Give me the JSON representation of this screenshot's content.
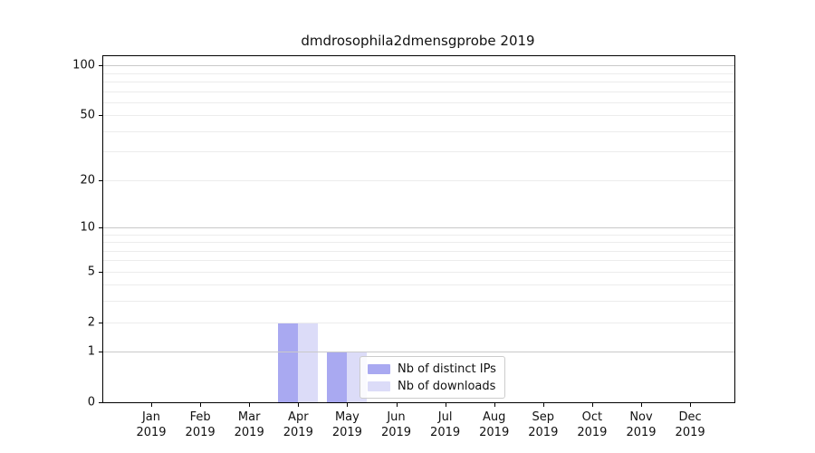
{
  "title": "dmdrosophila2dmensgprobe 2019",
  "colors": {
    "distinct_ips": "#a9a9f1",
    "downloads": "#dcdcf8",
    "grid_major": "#c9c9c9",
    "grid_minor": "#ececec",
    "axis": "#000000",
    "legend_border": "#cccccc",
    "background": "#ffffff"
  },
  "legend": {
    "position": "lower-center-inside",
    "items": [
      {
        "label": "Nb of distinct IPs",
        "color": "#a9a9f1"
      },
      {
        "label": "Nb of downloads",
        "color": "#dcdcf8"
      }
    ]
  },
  "chart_data": {
    "type": "bar",
    "title": "dmdrosophila2dmensgprobe 2019",
    "categories": [
      "Jan",
      "Feb",
      "Mar",
      "Apr",
      "May",
      "Jun",
      "Jul",
      "Aug",
      "Sep",
      "Oct",
      "Nov",
      "Dec"
    ],
    "year": "2019",
    "series": [
      {
        "name": "Nb of distinct IPs",
        "color": "#a9a9f1",
        "values": [
          0,
          0,
          0,
          2,
          1,
          0,
          0,
          0,
          0,
          0,
          0,
          0
        ]
      },
      {
        "name": "Nb of downloads",
        "color": "#dcdcf8",
        "values": [
          0,
          0,
          0,
          2,
          1,
          0,
          0,
          0,
          0,
          0,
          0,
          0
        ]
      }
    ],
    "xlabel": "",
    "ylabel": "",
    "yscale": "log1p",
    "ylim": [
      0,
      113
    ],
    "yticks_major": [
      0,
      1,
      10,
      100
    ],
    "yticks_labeled": [
      0,
      1,
      2,
      5,
      10,
      20,
      50,
      100
    ],
    "yticks_minor": [
      2,
      3,
      4,
      5,
      6,
      7,
      8,
      9,
      20,
      30,
      40,
      50,
      60,
      70,
      80,
      90
    ],
    "grid": true,
    "legend_position": "inside lower center"
  }
}
